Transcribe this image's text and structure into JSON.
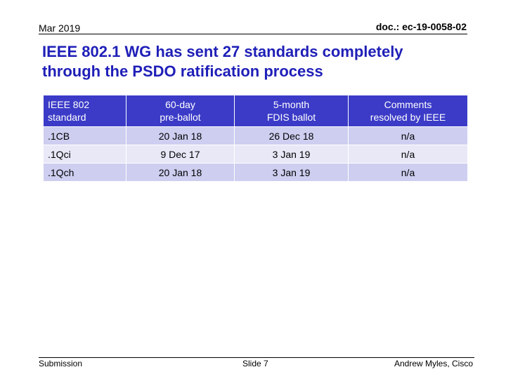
{
  "header": {
    "date": "Mar 2019",
    "doc_id": "doc.: ec-19-0058-02"
  },
  "title": {
    "line1": "IEEE 802.1 WG has sent 27 standards completely",
    "line2": "through the PSDO ratification process"
  },
  "table": {
    "headers": [
      {
        "line1": "IEEE 802",
        "line2": "standard"
      },
      {
        "line1": "60-day",
        "line2": "pre-ballot"
      },
      {
        "line1": "5-month",
        "line2": "FDIS ballot"
      },
      {
        "line1": "Comments",
        "line2": "resolved by IEEE"
      }
    ],
    "rows": [
      [
        ".1CB",
        "20 Jan 18",
        "26 Dec 18",
        "n/a"
      ],
      [
        ".1Qci",
        "9 Dec 17",
        "3 Jan 19",
        "n/a"
      ],
      [
        ".1Qch",
        "20 Jan 18",
        "3 Jan 19",
        "n/a"
      ]
    ]
  },
  "footer": {
    "left": "Submission",
    "center": "Slide 7",
    "right": "Andrew Myles, Cisco"
  },
  "colors": {
    "title": "#1f1fb8",
    "table_header_bg": "#3b3bc8",
    "table_row_odd_bg": "#cdcef0",
    "table_row_even_bg": "#e8e8f7"
  }
}
